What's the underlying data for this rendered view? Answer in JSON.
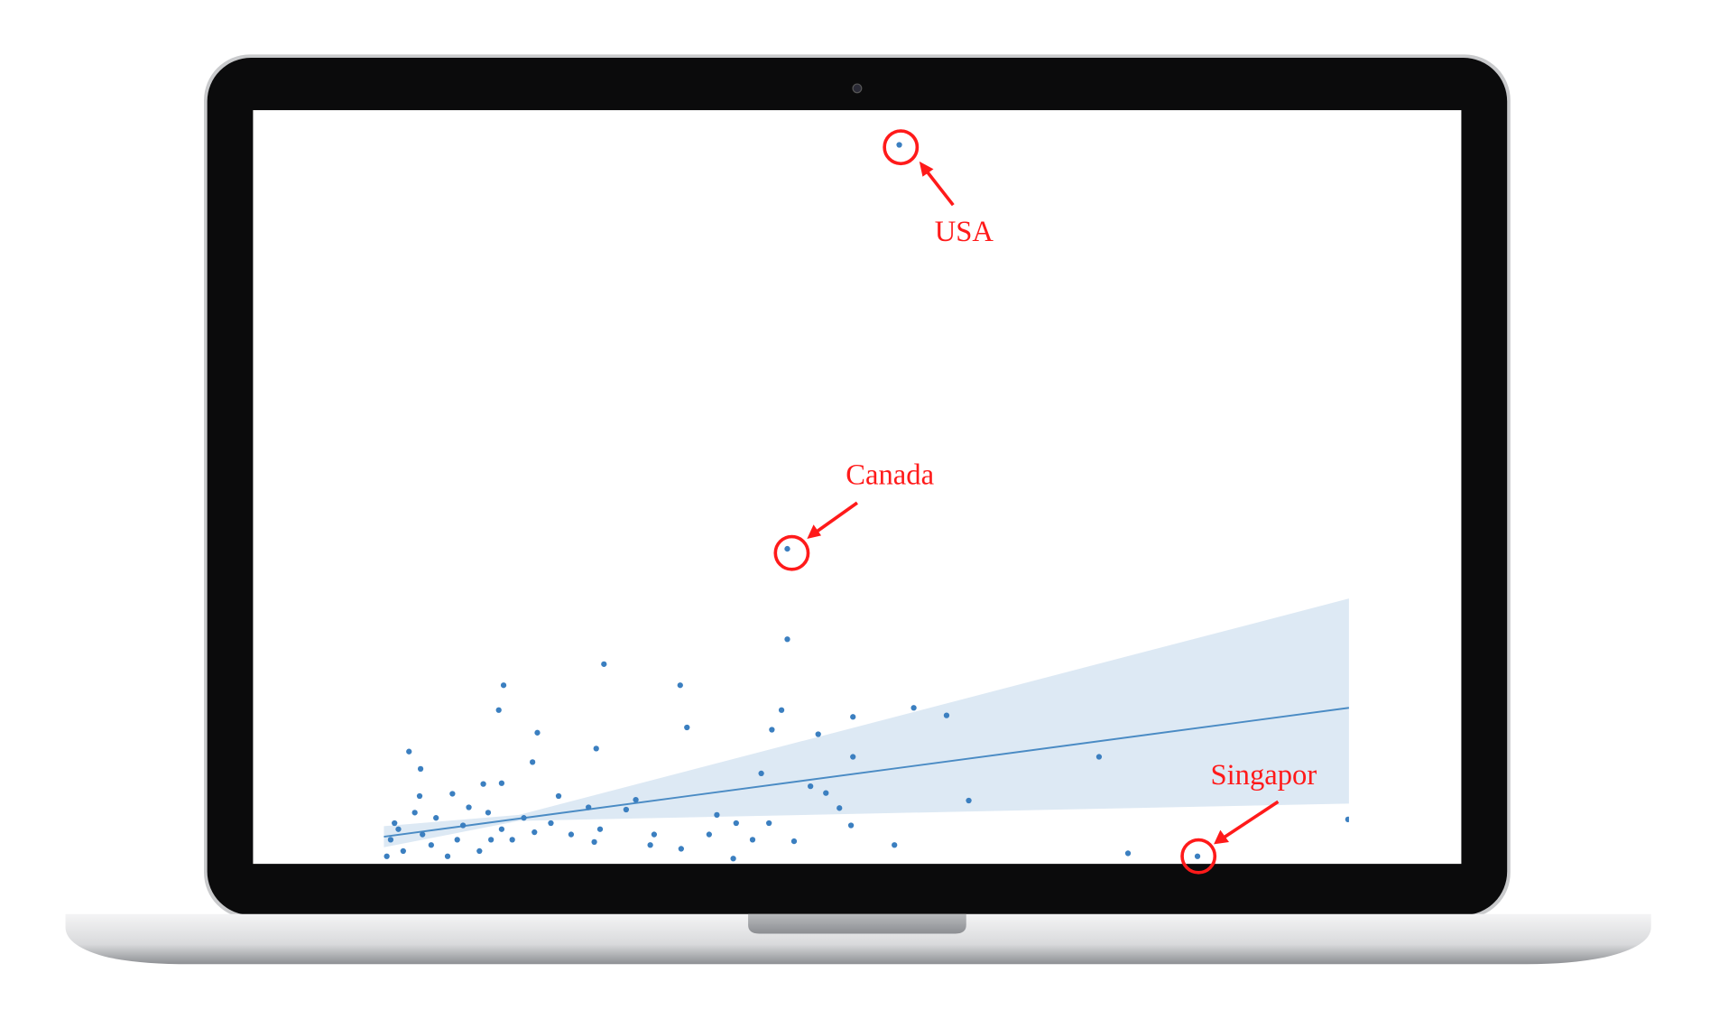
{
  "chart_data": {
    "type": "scatter",
    "xlim": [
      0,
      100
    ],
    "ylim": [
      0,
      100
    ],
    "color": "#3b7fc0",
    "x": [
      53.4,
      41.8,
      84.3,
      41.8,
      22.8,
      30.7,
      12.4,
      11.9,
      41.2,
      54.9,
      58.3,
      48.6,
      31.4,
      40.2,
      45.0,
      15.9,
      2.6,
      22.0,
      15.4,
      3.8,
      48.6,
      74.1,
      39.1,
      12.2,
      10.3,
      44.2,
      45.8,
      60.6,
      18.1,
      26.1,
      25.1,
      34.5,
      47.2,
      48.4,
      39.9,
      36.5,
      99.9,
      42.5,
      52.9,
      77.1,
      30.8,
      27.6,
      21.8,
      19.4,
      15.6,
      12.2,
      8.2,
      5.4,
      3.2,
      1.5,
      0.7,
      2.0,
      4.9,
      6.6,
      9.9,
      13.3,
      17.3,
      22.4,
      28.0,
      33.7,
      36.2,
      0.3,
      3.7,
      7.1,
      8.8,
      10.8,
      1.1,
      4.0,
      7.6,
      11.1,
      14.5,
      21.2,
      38.2
    ],
    "values": [
      95.4,
      41.8,
      1.0,
      29.8,
      26.5,
      23.7,
      23.7,
      20.4,
      20.4,
      20.7,
      19.7,
      19.5,
      18.1,
      17.8,
      17.2,
      17.4,
      14.9,
      15.3,
      13.5,
      12.6,
      14.2,
      14.2,
      12.0,
      10.7,
      10.6,
      10.3,
      9.4,
      8.4,
      9.0,
      8.5,
      7.2,
      6.5,
      7.4,
      5.1,
      5.4,
      5.4,
      5.9,
      3.0,
      2.5,
      1.4,
      2.0,
      2.5,
      2.9,
      3.9,
      4.2,
      4.6,
      5.1,
      6.1,
      6.8,
      4.6,
      3.2,
      1.7,
      2.5,
      1.0,
      1.7,
      3.2,
      5.4,
      4.6,
      3.9,
      3.9,
      0.7,
      1.0,
      9.0,
      9.3,
      7.5,
      6.8,
      5.4,
      3.9,
      3.2,
      3.2,
      6.1,
      7.5,
      3.2
    ],
    "fit": {
      "x": [
        0,
        14,
        100
      ],
      "values": [
        3.6,
        6.0,
        20.7
      ],
      "upper": [
        5.0,
        6.5,
        35.2
      ],
      "lower": [
        2.2,
        5.7,
        8.0
      ],
      "color": "#4a8bc4",
      "band_color": "#dde9f4"
    },
    "annotations": [
      "USA",
      "Canada",
      "Singapor"
    ],
    "annotation_color": "#ff1a1a"
  }
}
